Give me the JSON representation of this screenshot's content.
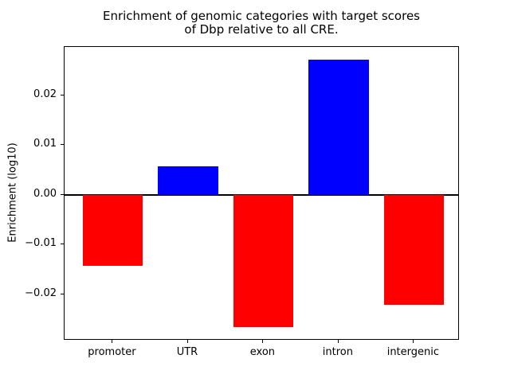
{
  "title_line1": "Enrichment of genomic categories with target scores",
  "title_line2": "of Dbp relative to all CRE.",
  "ylabel": "Enrichment (log10)",
  "chart_data": {
    "type": "bar",
    "title": "Enrichment of genomic categories with target scores\nof Dbp relative to all CRE.",
    "xlabel": "",
    "ylabel": "Enrichment (log10)",
    "categories": [
      "promoter",
      "UTR",
      "exon",
      "intron",
      "intergenic"
    ],
    "values": [
      -0.0142,
      0.0057,
      -0.0266,
      0.0271,
      -0.0221
    ],
    "positive_color": "#0000FF",
    "negative_color": "#FF0000",
    "bar_width_fraction": 0.8,
    "ylim": [
      -0.0293,
      0.0297
    ],
    "yticks": [
      0.02,
      0.01,
      0.0,
      -0.01,
      -0.02
    ],
    "ytick_labels": [
      "0.02",
      "0.01",
      "0.00",
      "−0.01",
      "−0.02"
    ],
    "zero_line": true,
    "grid": false,
    "legend": null
  }
}
